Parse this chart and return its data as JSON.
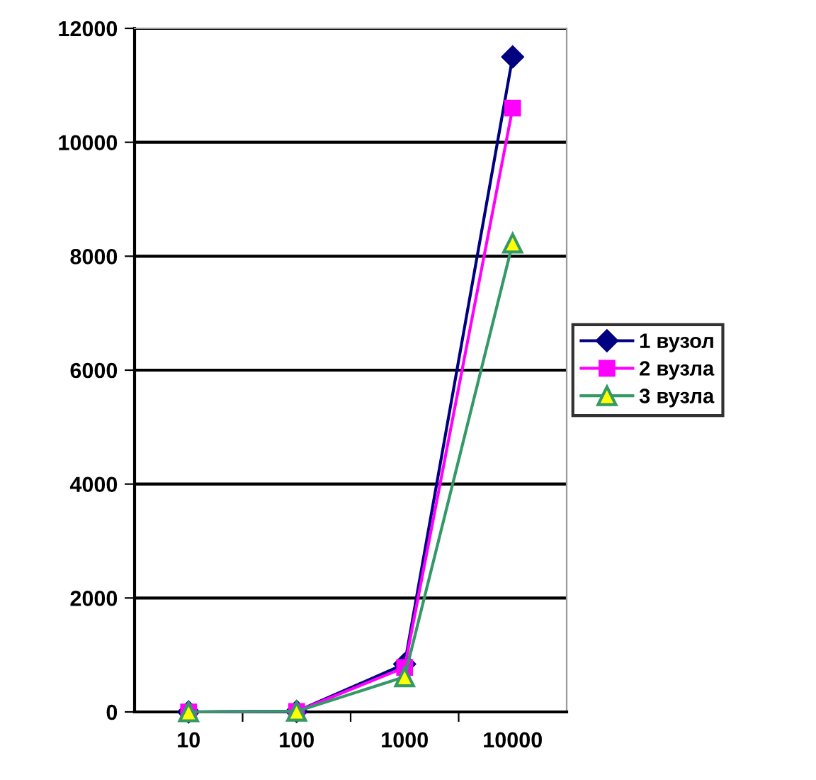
{
  "chart_data": {
    "type": "line",
    "categories": [
      "10",
      "100",
      "1000",
      "10000"
    ],
    "series": [
      {
        "name": "1 вузол",
        "color": "#000080",
        "marker": "diamond",
        "values": [
          0,
          10,
          840,
          11500
        ]
      },
      {
        "name": "2 вузла",
        "color": "#ff00ff",
        "marker": "square",
        "values": [
          0,
          10,
          780,
          10600
        ]
      },
      {
        "name": "3 вузла",
        "color": "#339966",
        "marker": "triangle",
        "values": [
          0,
          10,
          615,
          8230
        ]
      }
    ],
    "ylim": [
      0,
      12000
    ],
    "yticks": [
      0,
      2000,
      4000,
      6000,
      8000,
      10000,
      12000
    ],
    "grid": "y",
    "legend": "right"
  }
}
